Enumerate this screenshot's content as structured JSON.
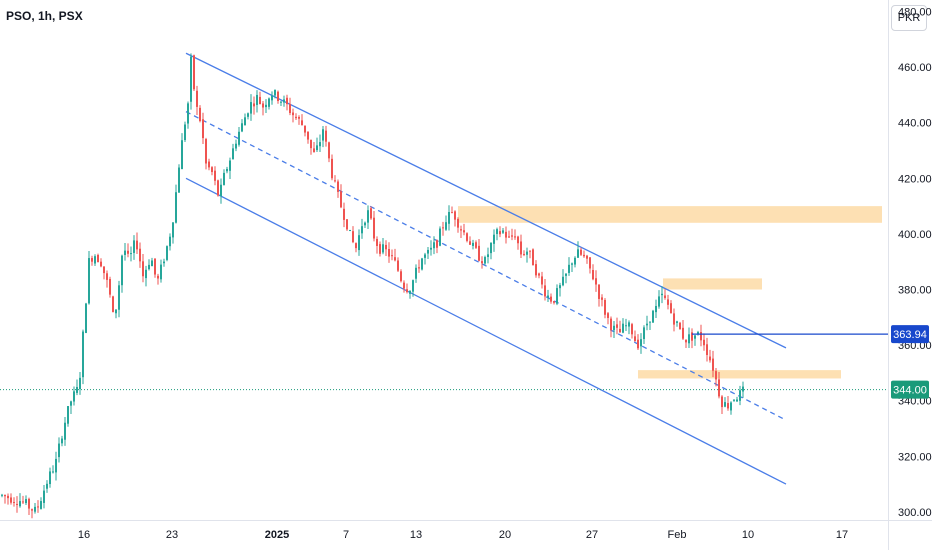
{
  "header": {
    "title": "PSO, 1h, PSX",
    "currency": "PKR"
  },
  "colors": {
    "up": "#26a69a",
    "down": "#ef5350",
    "channel": "#4a7de8",
    "zone": "#fde0b3",
    "level": "#1848cc",
    "current": "#1a9a7a"
  },
  "chart_data": {
    "type": "candlestick",
    "y_ticks": [
      "300.00",
      "320.00",
      "340.00",
      "360.00",
      "380.00",
      "400.00",
      "420.00",
      "440.00",
      "460.00",
      "480.00"
    ],
    "x_ticks": [
      {
        "label": "16",
        "bold": false
      },
      {
        "label": "23",
        "bold": false
      },
      {
        "label": "2025",
        "bold": true
      },
      {
        "label": "7",
        "bold": false
      },
      {
        "label": "13",
        "bold": false
      },
      {
        "label": "20",
        "bold": false
      },
      {
        "label": "27",
        "bold": false
      },
      {
        "label": "Feb",
        "bold": false
      },
      {
        "label": "10",
        "bold": false
      },
      {
        "label": "17",
        "bold": false
      }
    ],
    "ylim": [
      296,
      482
    ],
    "horizontal_level": {
      "value": 363.94,
      "label": "363.94"
    },
    "current_price": {
      "value": 344.0,
      "label": "344.00"
    },
    "path_points": [
      [
        0,
        306
      ],
      [
        20,
        304
      ],
      [
        35,
        300
      ],
      [
        45,
        310
      ],
      [
        55,
        318
      ],
      [
        62,
        330
      ],
      [
        70,
        340
      ],
      [
        78,
        345
      ],
      [
        83,
        368
      ],
      [
        88,
        390
      ],
      [
        93,
        393
      ],
      [
        100,
        390
      ],
      [
        108,
        380
      ],
      [
        113,
        368
      ],
      [
        118,
        382
      ],
      [
        122,
        396
      ],
      [
        128,
        390
      ],
      [
        135,
        398
      ],
      [
        142,
        385
      ],
      [
        150,
        392
      ],
      [
        156,
        382
      ],
      [
        162,
        390
      ],
      [
        168,
        398
      ],
      [
        173,
        408
      ],
      [
        178,
        425
      ],
      [
        183,
        438
      ],
      [
        187,
        447
      ],
      [
        190,
        462
      ],
      [
        195,
        446
      ],
      [
        200,
        440
      ],
      [
        205,
        425
      ],
      [
        211,
        422
      ],
      [
        218,
        413
      ],
      [
        224,
        422
      ],
      [
        230,
        428
      ],
      [
        236,
        435
      ],
      [
        242,
        440
      ],
      [
        248,
        446
      ],
      [
        256,
        449
      ],
      [
        262,
        446
      ],
      [
        270,
        451
      ],
      [
        278,
        449
      ],
      [
        286,
        446
      ],
      [
        294,
        442
      ],
      [
        300,
        440
      ],
      [
        306,
        436
      ],
      [
        312,
        428
      ],
      [
        318,
        432
      ],
      [
        322,
        438
      ],
      [
        326,
        430
      ],
      [
        332,
        420
      ],
      [
        338,
        412
      ],
      [
        345,
        405
      ],
      [
        350,
        398
      ],
      [
        355,
        395
      ],
      [
        362,
        405
      ],
      [
        368,
        408
      ],
      [
        372,
        400
      ],
      [
        378,
        395
      ],
      [
        384,
        394
      ],
      [
        390,
        392
      ],
      [
        396,
        388
      ],
      [
        402,
        382
      ],
      [
        408,
        380
      ],
      [
        414,
        385
      ],
      [
        420,
        391
      ],
      [
        428,
        393
      ],
      [
        436,
        397
      ],
      [
        444,
        405
      ],
      [
        452,
        408
      ],
      [
        460,
        402
      ],
      [
        466,
        399
      ],
      [
        472,
        395
      ],
      [
        478,
        392
      ],
      [
        484,
        390
      ],
      [
        490,
        396
      ],
      [
        496,
        400
      ],
      [
        502,
        401
      ],
      [
        508,
        398
      ],
      [
        514,
        400
      ],
      [
        520,
        393
      ],
      [
        526,
        394
      ],
      [
        532,
        390
      ],
      [
        540,
        382
      ],
      [
        546,
        378
      ],
      [
        552,
        376
      ],
      [
        558,
        380
      ],
      [
        564,
        384
      ],
      [
        570,
        390
      ],
      [
        576,
        393
      ],
      [
        582,
        392
      ],
      [
        588,
        388
      ],
      [
        594,
        383
      ],
      [
        600,
        376
      ],
      [
        606,
        370
      ],
      [
        612,
        366
      ],
      [
        618,
        364
      ],
      [
        624,
        367
      ],
      [
        630,
        366
      ],
      [
        636,
        360
      ],
      [
        642,
        364
      ],
      [
        648,
        370
      ],
      [
        654,
        372
      ],
      [
        660,
        378
      ],
      [
        666,
        375
      ],
      [
        672,
        370
      ],
      [
        678,
        366
      ],
      [
        684,
        362
      ],
      [
        690,
        363
      ],
      [
        696,
        364
      ],
      [
        702,
        362
      ],
      [
        708,
        356
      ],
      [
        712,
        352
      ],
      [
        716,
        346
      ],
      [
        720,
        340
      ],
      [
        726,
        338
      ],
      [
        732,
        341
      ],
      [
        738,
        342
      ],
      [
        744,
        344
      ]
    ]
  },
  "drawings": {
    "channel_upper": [
      [
        186,
        465
      ],
      [
        786,
        359
      ]
    ],
    "channel_mid": [
      [
        186,
        444
      ],
      [
        786,
        333
      ]
    ],
    "channel_lower": [
      [
        186,
        420
      ],
      [
        786,
        310
      ]
    ],
    "zones": [
      {
        "x1": 458,
        "x2": 882,
        "y1": 404,
        "y2": 410
      },
      {
        "x1": 663,
        "x2": 762,
        "y1": 380,
        "y2": 384
      },
      {
        "x1": 638,
        "x2": 841,
        "y1": 348,
        "y2": 351
      }
    ],
    "level_start_x": 692
  }
}
